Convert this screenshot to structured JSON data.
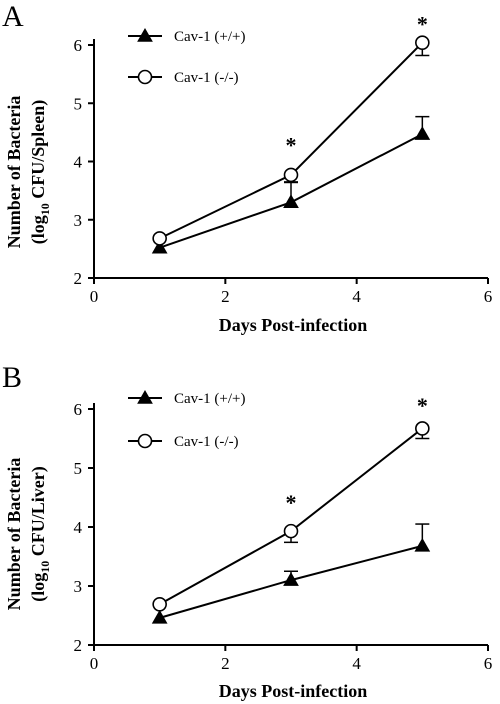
{
  "chart_data": [
    {
      "type": "line",
      "panel_label": "A",
      "xlabel": "Days Post-infection",
      "ylabel_line1": "Number of Bacteria",
      "ylabel_line2_pre": "(log",
      "ylabel_line2_sub": "10",
      "ylabel_line2_post": " CFU/Spleen)",
      "xlim": [
        0,
        6
      ],
      "ylim": [
        2,
        6
      ],
      "xticks": [
        "0",
        "2",
        "4",
        "6"
      ],
      "yticks": [
        "2",
        "3",
        "4",
        "5",
        "6"
      ],
      "legend_position": "top-left",
      "series": [
        {
          "name": "Cav-1 (+/+)",
          "marker": "filled-triangle",
          "x": [
            1,
            3,
            5
          ],
          "y": [
            2.52,
            3.3,
            4.47
          ],
          "err": [
            0.05,
            0.35,
            0.3
          ]
        },
        {
          "name": "Cav-1 (-/-)",
          "marker": "open-circle",
          "x": [
            1,
            3,
            5
          ],
          "y": [
            2.68,
            3.77,
            6.04
          ],
          "err": [
            0.05,
            0.13,
            0.22
          ]
        }
      ],
      "annotations": [
        {
          "text": "*",
          "x": 3,
          "y": 4.33
        },
        {
          "text": "*",
          "x": 5,
          "y": 6.4
        }
      ]
    },
    {
      "type": "line",
      "panel_label": "B",
      "xlabel": "Days Post-infection",
      "ylabel_line1": "Number of Bacteria",
      "ylabel_line2_pre": "(log",
      "ylabel_line2_sub": "10",
      "ylabel_line2_post": " CFU/Liver)",
      "xlim": [
        0,
        6
      ],
      "ylim": [
        2,
        6
      ],
      "xticks": [
        "0",
        "2",
        "4",
        "6"
      ],
      "yticks": [
        "2",
        "3",
        "4",
        "5",
        "6"
      ],
      "legend_position": "top-left",
      "series": [
        {
          "name": "Cav-1 (+/+)",
          "marker": "filled-triangle",
          "x": [
            1,
            3,
            5
          ],
          "y": [
            2.46,
            3.1,
            3.68
          ],
          "err": [
            0.05,
            0.15,
            0.37
          ]
        },
        {
          "name": "Cav-1 (-/-)",
          "marker": "open-circle",
          "x": [
            1,
            3,
            5
          ],
          "y": [
            2.69,
            3.93,
            5.67
          ],
          "err": [
            0.05,
            0.19,
            0.17
          ]
        }
      ],
      "annotations": [
        {
          "text": "*",
          "x": 3,
          "y": 4.46
        },
        {
          "text": "*",
          "x": 5,
          "y": 6.1
        }
      ]
    }
  ],
  "colors": {
    "ink": "#000000",
    "background": "#ffffff"
  }
}
